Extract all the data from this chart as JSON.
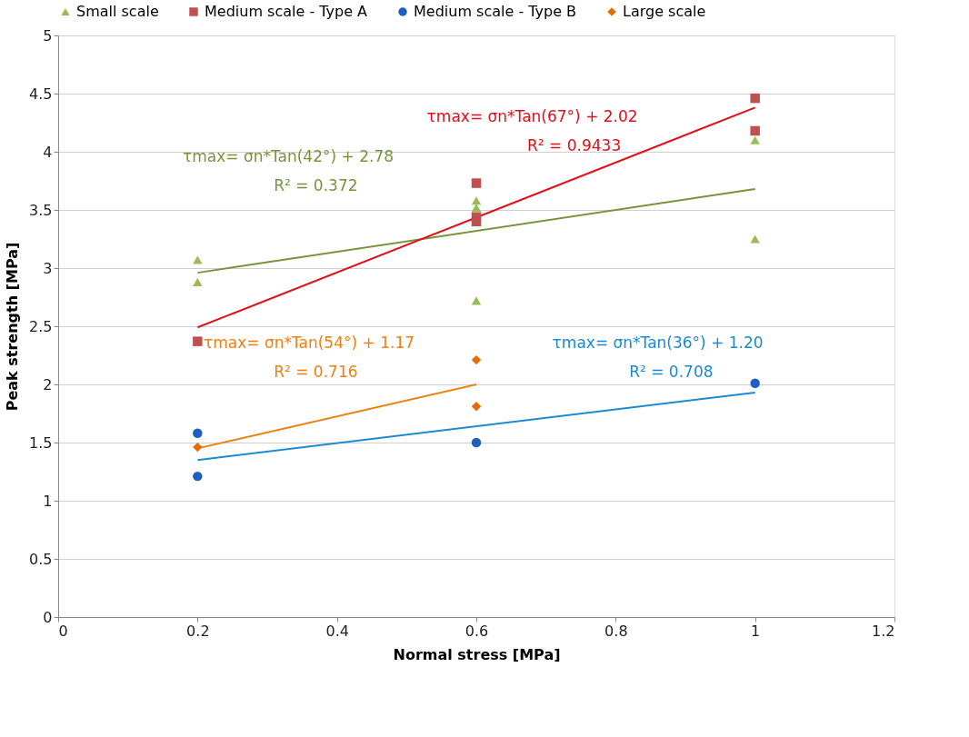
{
  "chart_data": {
    "type": "scatter",
    "xlabel": "Normal stress [MPa]",
    "ylabel": "Peak strength [MPa]",
    "xlim": [
      0,
      1.2
    ],
    "xticks": [
      0,
      0.2,
      0.4,
      0.6,
      0.8,
      1,
      1.2
    ],
    "ylim": [
      0,
      5
    ],
    "yticks": [
      0,
      0.5,
      1,
      1.5,
      2,
      2.5,
      3,
      3.5,
      4,
      4.5,
      5
    ],
    "grid": "y",
    "legend": "top",
    "series": [
      {
        "name": "Small scale",
        "marker": "triangle",
        "color": "#9bbb59",
        "x": [
          0.2,
          0.2,
          0.6,
          0.6,
          0.6,
          1,
          1
        ],
        "values": [
          3.07,
          2.88,
          3.58,
          3.52,
          2.72,
          4.1,
          3.25
        ]
      },
      {
        "name": "Medium scale - Type A",
        "marker": "square",
        "color": "#c0504d",
        "x": [
          0.2,
          0.6,
          0.6,
          0.6,
          1,
          1
        ],
        "values": [
          2.37,
          3.73,
          3.44,
          3.4,
          4.46,
          4.18
        ]
      },
      {
        "name": "Medium scale - Type B",
        "marker": "circle",
        "color": "#1f5fbf",
        "x": [
          0.2,
          0.2,
          0.6,
          1
        ],
        "values": [
          1.58,
          1.21,
          1.5,
          2.01
        ]
      },
      {
        "name": "Large scale",
        "marker": "diamond",
        "color": "#e46c0a",
        "x": [
          0.2,
          0.6,
          0.6
        ],
        "values": [
          1.46,
          2.21,
          1.81
        ]
      },
      {
        "type": "line",
        "color": "#77933c",
        "x": [
          0.2,
          1
        ],
        "values": [
          2.96,
          3.68
        ]
      },
      {
        "type": "line",
        "color": "#e0101a",
        "x": [
          0.2,
          1
        ],
        "values": [
          2.49,
          4.38
        ]
      },
      {
        "type": "line",
        "color": "#f07f10",
        "x": [
          0.2,
          0.6
        ],
        "values": [
          1.45,
          2.0
        ]
      },
      {
        "type": "line",
        "color": "#1a8ad4",
        "x": [
          0.2,
          1
        ],
        "values": [
          1.35,
          1.93
        ]
      }
    ],
    "annotations": [
      "τmax= σn*Tan(67°) + 2.02",
      "R² = 0.9433",
      "τmax= σn*Tan(42°) + 2.78",
      "R² = 0.372",
      "τmax= σn*Tan(54°) + 1.17",
      "R² = 0.716",
      "τmax= σn*Tan(36°) + 1.20",
      "R² = 0.708"
    ]
  }
}
